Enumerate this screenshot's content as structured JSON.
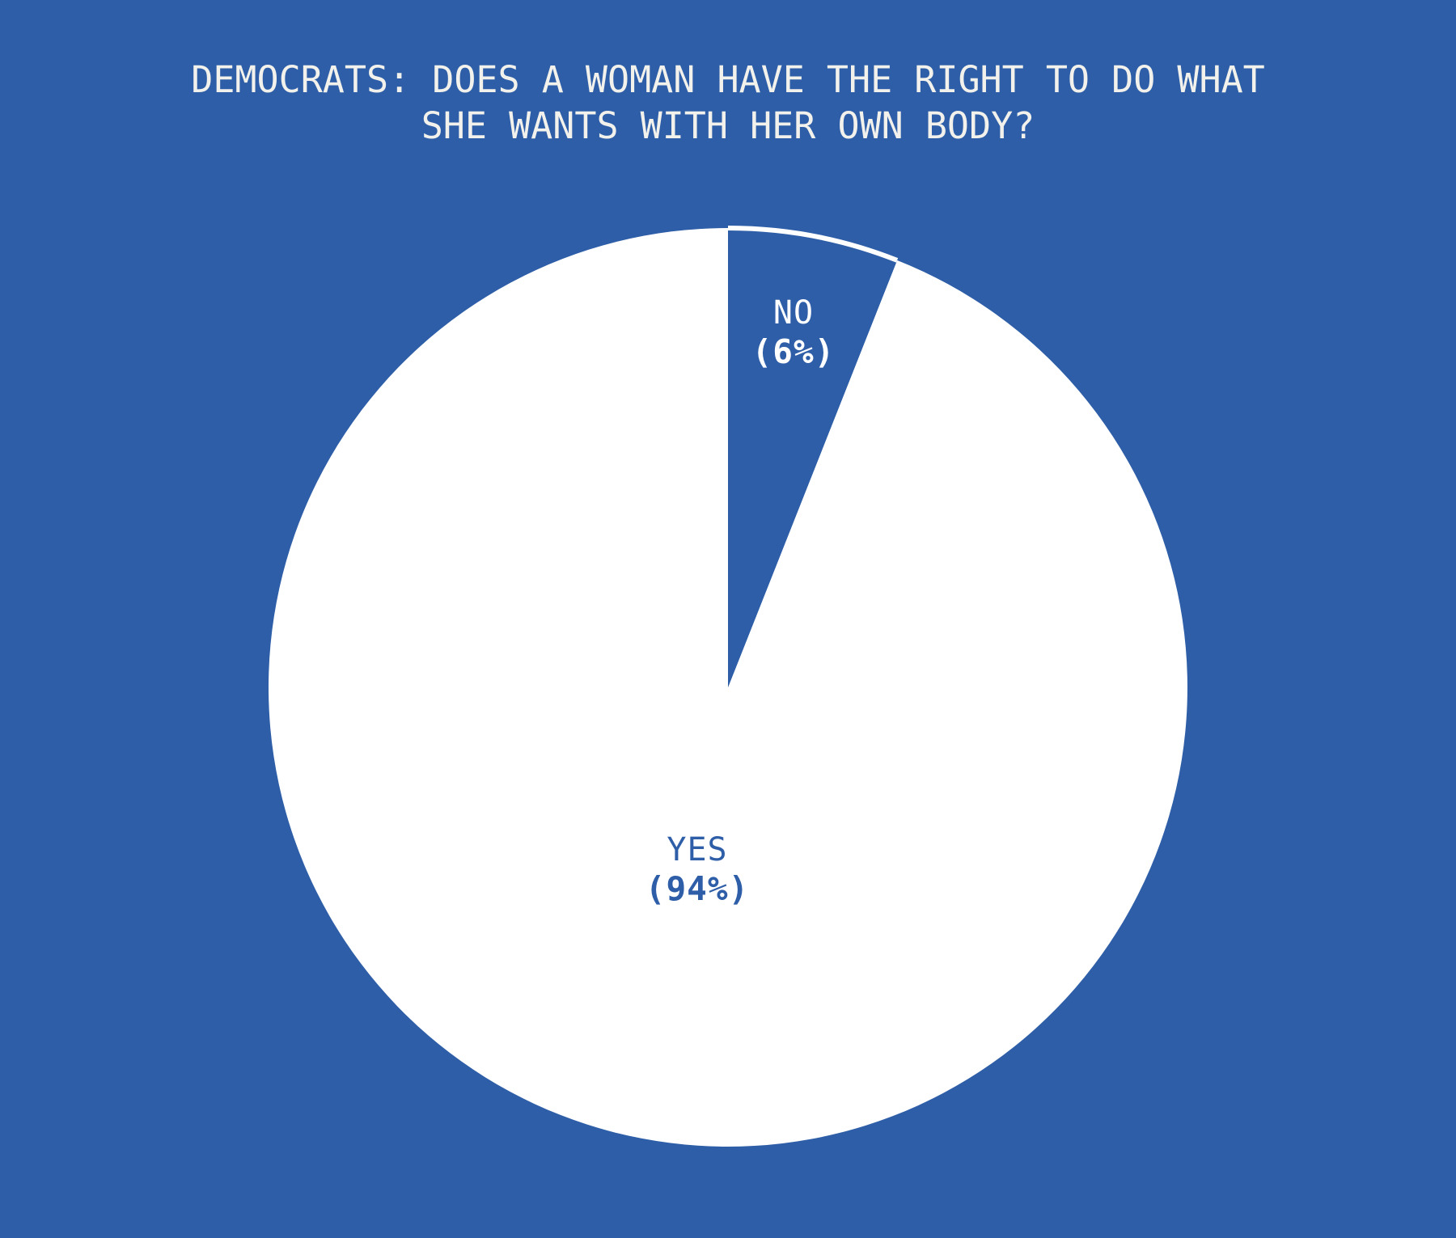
{
  "title": {
    "line1": "DEMOCRATS: DOES A WOMAN HAVE THE RIGHT TO DO WHAT",
    "line2": "SHE WANTS WITH HER OWN BODY?"
  },
  "colors": {
    "background": "#2D5EA7",
    "slice_yes_fill": "#FFFFFF",
    "slice_no_fill": "#2D5EA7",
    "slice_no_arc_outline": "#FFFFFF",
    "title_text": "#F2F1EC",
    "label_no_text": "#FFFFFF",
    "label_yes_text": "#2D5EA7"
  },
  "chart_data": {
    "type": "pie",
    "title": "DEMOCRATS: DOES A WOMAN HAVE THE RIGHT TO DO WHAT SHE WANTS WITH HER OWN BODY?",
    "categories": [
      "NO",
      "YES"
    ],
    "values": [
      6,
      94
    ],
    "unit": "percent",
    "start_angle_deg": 0,
    "direction": "clockwise",
    "legend": "none",
    "labels": [
      {
        "name": "NO",
        "percent_text": "(6%)",
        "value": 6
      },
      {
        "name": "YES",
        "percent_text": "(94%)",
        "value": 94
      }
    ]
  }
}
